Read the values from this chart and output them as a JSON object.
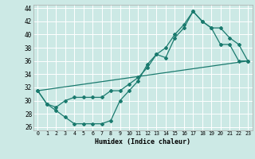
{
  "title": "",
  "xlabel": "Humidex (Indice chaleur)",
  "bg_color": "#cce9e5",
  "grid_color": "#ffffff",
  "line_color": "#1a7a6e",
  "xlim": [
    -0.5,
    23.5
  ],
  "ylim": [
    25.5,
    44.5
  ],
  "xticks": [
    0,
    1,
    2,
    3,
    4,
    5,
    6,
    7,
    8,
    9,
    10,
    11,
    12,
    13,
    14,
    15,
    16,
    17,
    18,
    19,
    20,
    21,
    22,
    23
  ],
  "yticks": [
    26,
    28,
    30,
    32,
    34,
    36,
    38,
    40,
    42,
    44
  ],
  "line1_x": [
    0,
    1,
    2,
    3,
    4,
    5,
    6,
    7,
    8,
    9,
    10,
    11,
    12,
    13,
    14,
    15,
    16,
    17,
    18,
    19,
    20,
    21,
    22,
    23
  ],
  "line1_y": [
    31.5,
    29.5,
    28.5,
    27.5,
    26.5,
    26.5,
    26.5,
    26.5,
    27.0,
    30.0,
    31.5,
    33.0,
    35.5,
    37.0,
    36.5,
    39.5,
    41.0,
    43.5,
    42.0,
    41.0,
    38.5,
    38.5,
    36.0,
    36.0
  ],
  "line2_x": [
    0,
    1,
    2,
    3,
    4,
    5,
    6,
    7,
    8,
    9,
    10,
    11,
    12,
    13,
    14,
    15,
    16,
    17,
    18,
    19,
    20,
    21,
    22,
    23
  ],
  "line2_y": [
    31.5,
    29.5,
    29.0,
    30.0,
    30.5,
    30.5,
    30.5,
    30.5,
    31.5,
    31.5,
    32.5,
    33.5,
    35.0,
    37.0,
    38.0,
    40.0,
    41.5,
    43.5,
    42.0,
    41.0,
    41.0,
    39.5,
    38.5,
    36.0
  ],
  "line3_x": [
    0,
    23
  ],
  "line3_y": [
    31.5,
    36.0
  ]
}
